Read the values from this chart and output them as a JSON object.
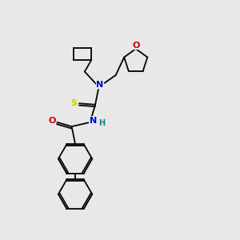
{
  "bg_color": "#e8e8e8",
  "atom_colors": {
    "C": "#000000",
    "N": "#0000cc",
    "O": "#cc0000",
    "S": "#cccc00",
    "H": "#008888"
  }
}
